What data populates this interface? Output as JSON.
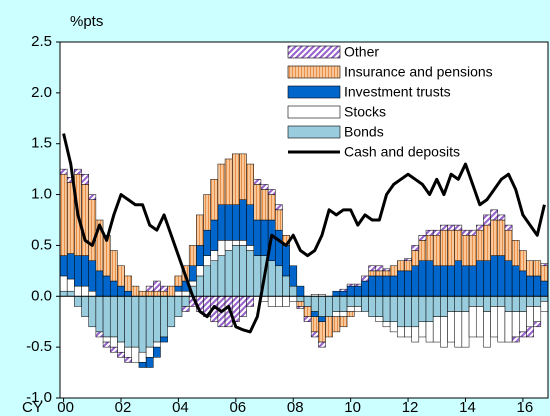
{
  "chart_data": {
    "type": "bar",
    "stacked": true,
    "ylabel": "%pts",
    "xlabel": "CY",
    "categories": [
      "00",
      null,
      null,
      null,
      null,
      null,
      null,
      null,
      "02",
      null,
      null,
      null,
      null,
      null,
      null,
      null,
      "04",
      null,
      null,
      null,
      null,
      null,
      null,
      null,
      "06",
      null,
      null,
      null,
      null,
      null,
      null,
      null,
      "08",
      null,
      null,
      null,
      null,
      null,
      null,
      null,
      "10",
      null,
      null,
      null,
      null,
      null,
      null,
      null,
      "12",
      null,
      null,
      null,
      null,
      null,
      null,
      null,
      "14",
      null,
      null,
      null,
      null,
      null,
      null,
      null,
      "16",
      null,
      null,
      null
    ],
    "ylim": [
      -1.0,
      2.5
    ],
    "yticks": [
      {
        "value": -1.0,
        "label": "-1.0"
      },
      {
        "value": -0.5,
        "label": "-0.5"
      },
      {
        "value": 0,
        "label": "0.0"
      },
      {
        "value": 0.5,
        "label": "0.5"
      },
      {
        "value": 1.0,
        "label": "1.0"
      },
      {
        "value": 1.5,
        "label": "1.5"
      },
      {
        "value": 2.0,
        "label": "2.0"
      },
      {
        "value": 2.5,
        "label": "2.5"
      }
    ],
    "grid": false,
    "legend": "upper right",
    "background": "#ccffff",
    "series": [
      {
        "name": "Other",
        "color": "#9966cc",
        "pattern": "hatch",
        "values": [
          0.05,
          0.05,
          0.05,
          0.1,
          0.05,
          -0.05,
          -0.05,
          -0.05,
          -0.05,
          -0.05,
          0.0,
          0.0,
          0.05,
          0.1,
          0.05,
          0.0,
          0.0,
          -0.05,
          -0.1,
          -0.15,
          -0.2,
          -0.25,
          -0.3,
          -0.3,
          -0.25,
          -0.2,
          -0.1,
          0.05,
          0.05,
          0.05,
          0.05,
          0.0,
          0.0,
          -0.02,
          -0.05,
          -0.05,
          -0.05,
          0.0,
          0.0,
          0.02,
          0.02,
          0.02,
          0.05,
          0.05,
          0.05,
          0.02,
          0.0,
          0.0,
          0.02,
          0.05,
          0.05,
          0.05,
          0.05,
          0.05,
          0.05,
          0.05,
          0.05,
          0.05,
          0.05,
          0.1,
          0.1,
          0.05,
          0.05,
          -0.05,
          -0.05,
          -0.1,
          -0.05,
          0.02
        ]
      },
      {
        "name": "Insurance and pensions",
        "color": "#f8c89a",
        "pattern": "stripes",
        "values": [
          0.8,
          0.7,
          0.8,
          0.7,
          0.6,
          0.5,
          0.4,
          0.3,
          0.2,
          0.15,
          0.1,
          0.05,
          0.05,
          0.05,
          0.05,
          0.1,
          0.1,
          0.15,
          0.2,
          0.3,
          0.35,
          0.4,
          0.4,
          0.45,
          0.5,
          0.45,
          0.4,
          0.35,
          0.3,
          0.25,
          0.2,
          0.1,
          0.0,
          -0.05,
          -0.1,
          -0.15,
          -0.2,
          -0.2,
          -0.15,
          -0.1,
          -0.05,
          0.0,
          0.0,
          0.05,
          0.05,
          0.05,
          0.1,
          0.1,
          0.1,
          0.15,
          0.2,
          0.25,
          0.3,
          0.35,
          0.35,
          0.3,
          0.3,
          0.3,
          0.3,
          0.35,
          0.35,
          0.35,
          0.3,
          0.25,
          0.2,
          0.15,
          0.15,
          0.15
        ]
      },
      {
        "name": "Investment trusts",
        "color": "#0066cc",
        "values": [
          0.2,
          0.25,
          0.3,
          0.3,
          0.3,
          0.25,
          0.2,
          0.15,
          0.1,
          0.05,
          0.0,
          -0.05,
          -0.1,
          -0.1,
          -0.05,
          0.0,
          0.05,
          0.1,
          0.15,
          0.2,
          0.25,
          0.3,
          0.35,
          0.35,
          0.35,
          0.4,
          0.4,
          0.35,
          0.35,
          0.4,
          0.35,
          0.3,
          0.2,
          0.1,
          0.0,
          -0.05,
          -0.05,
          0.0,
          0.05,
          0.05,
          0.1,
          0.1,
          0.15,
          0.2,
          0.2,
          0.2,
          0.2,
          0.25,
          0.25,
          0.3,
          0.35,
          0.35,
          0.3,
          0.3,
          0.3,
          0.35,
          0.3,
          0.3,
          0.35,
          0.35,
          0.4,
          0.4,
          0.35,
          0.3,
          0.25,
          0.2,
          0.2,
          0.15
        ]
      },
      {
        "name": "Stocks",
        "color": "#ffffff",
        "values": [
          0.15,
          0.12,
          0.1,
          0.1,
          0.05,
          0.0,
          -0.05,
          -0.1,
          -0.1,
          -0.1,
          -0.15,
          -0.1,
          -0.1,
          -0.05,
          0.0,
          0.0,
          0.05,
          0.05,
          0.05,
          0.1,
          0.1,
          0.1,
          0.15,
          0.1,
          0.05,
          0.05,
          0.05,
          0.0,
          -0.05,
          -0.1,
          -0.1,
          -0.1,
          -0.05,
          0.0,
          0.0,
          0.02,
          0.02,
          0.0,
          -0.05,
          -0.05,
          -0.05,
          -0.05,
          0.0,
          0.0,
          -0.05,
          -0.05,
          -0.1,
          -0.1,
          -0.1,
          -0.15,
          -0.15,
          -0.2,
          -0.25,
          -0.3,
          -0.3,
          -0.35,
          -0.35,
          -0.3,
          -0.3,
          -0.35,
          -0.3,
          -0.35,
          -0.3,
          -0.25,
          -0.2,
          -0.2,
          -0.15,
          -0.1
        ]
      },
      {
        "name": "Bonds",
        "color": "#99ccdd",
        "values": [
          0.05,
          0.05,
          -0.1,
          -0.2,
          -0.3,
          -0.35,
          -0.4,
          -0.4,
          -0.45,
          -0.5,
          -0.5,
          -0.55,
          -0.5,
          -0.45,
          -0.4,
          -0.3,
          -0.2,
          -0.1,
          0.1,
          0.2,
          0.3,
          0.35,
          0.4,
          0.45,
          0.5,
          0.5,
          0.45,
          0.4,
          0.4,
          0.35,
          0.3,
          0.2,
          0.1,
          -0.05,
          -0.1,
          -0.15,
          -0.2,
          -0.2,
          -0.15,
          -0.15,
          -0.1,
          -0.1,
          -0.15,
          -0.2,
          -0.2,
          -0.25,
          -0.25,
          -0.3,
          -0.3,
          -0.3,
          -0.25,
          -0.25,
          -0.2,
          -0.2,
          -0.15,
          -0.15,
          -0.15,
          -0.1,
          -0.1,
          -0.15,
          -0.1,
          -0.1,
          -0.15,
          -0.15,
          -0.15,
          -0.1,
          -0.1,
          -0.05
        ]
      },
      {
        "name": "Cash and deposits",
        "color": "#000000",
        "type": "line",
        "values": [
          1.6,
          1.3,
          0.8,
          0.55,
          0.5,
          0.7,
          0.55,
          0.8,
          1.0,
          0.95,
          0.9,
          0.9,
          0.7,
          0.65,
          0.8,
          0.6,
          0.4,
          0.2,
          0.0,
          -0.15,
          -0.2,
          -0.1,
          -0.15,
          -0.1,
          -0.3,
          -0.33,
          -0.35,
          -0.2,
          0.2,
          0.6,
          0.55,
          0.5,
          0.6,
          0.45,
          0.4,
          0.45,
          0.6,
          0.85,
          0.8,
          0.85,
          0.85,
          0.7,
          0.8,
          0.75,
          0.75,
          1.0,
          1.1,
          1.15,
          1.2,
          1.15,
          1.1,
          1.0,
          1.15,
          1.0,
          1.2,
          1.15,
          1.3,
          1.1,
          0.9,
          0.95,
          1.05,
          1.15,
          1.2,
          1.05,
          0.8,
          0.7,
          0.6,
          0.9
        ]
      }
    ]
  }
}
